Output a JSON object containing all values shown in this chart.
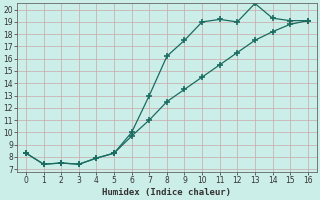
{
  "xlabel": "Humidex (Indice chaleur)",
  "ylabel": "",
  "background_color": "#cceee8",
  "grid_color": "#b0c8c4",
  "line_color": "#1a6b60",
  "xlim": [
    -0.5,
    16.5
  ],
  "ylim": [
    6.8,
    20.5
  ],
  "yticks": [
    7,
    8,
    9,
    10,
    11,
    12,
    13,
    14,
    15,
    16,
    17,
    18,
    19,
    20
  ],
  "xticks": [
    0,
    1,
    2,
    3,
    4,
    5,
    6,
    7,
    8,
    9,
    10,
    11,
    12,
    13,
    14,
    15,
    16
  ],
  "line1_x": [
    0,
    1,
    2,
    3,
    4,
    5,
    6,
    7,
    8,
    9,
    10,
    11,
    12,
    13,
    14,
    15,
    16
  ],
  "line1_y": [
    8.3,
    7.4,
    7.5,
    7.4,
    7.9,
    8.3,
    10.0,
    13.0,
    16.2,
    17.5,
    19.0,
    19.2,
    19.0,
    20.5,
    19.3,
    19.1,
    19.1
  ],
  "line2_x": [
    0,
    1,
    2,
    3,
    4,
    5,
    6,
    7,
    8,
    9,
    10,
    11,
    12,
    13,
    14,
    15,
    16
  ],
  "line2_y": [
    8.3,
    7.4,
    7.5,
    7.4,
    7.9,
    8.3,
    9.7,
    11.0,
    12.5,
    13.5,
    14.5,
    15.5,
    16.5,
    17.5,
    18.2,
    18.8,
    19.1
  ]
}
